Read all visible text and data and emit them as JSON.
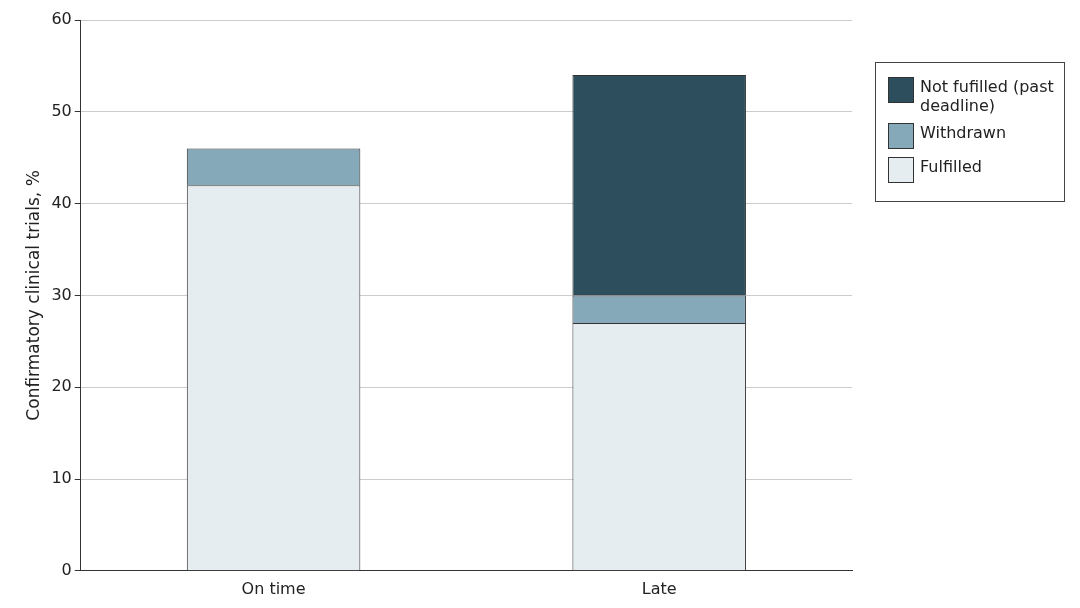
{
  "chart_data": {
    "type": "bar",
    "stacked": true,
    "ylabel": "Confirmatory clinical trials, %",
    "categories": [
      "On time",
      "Late"
    ],
    "series": [
      {
        "name": "Fulfilled",
        "color": "#e6edf1",
        "values": [
          42,
          27
        ]
      },
      {
        "name": "Withdrawn",
        "color": "#86a9b9",
        "values": [
          4,
          3
        ]
      },
      {
        "name": "Not fufilled (past deadline)",
        "color": "#2d4f5d",
        "values": [
          null,
          24
        ]
      }
    ],
    "ylim": [
      0,
      60
    ],
    "yticks": [
      0,
      10,
      20,
      30,
      40,
      50,
      60
    ],
    "grid": "y",
    "legend": "right"
  }
}
